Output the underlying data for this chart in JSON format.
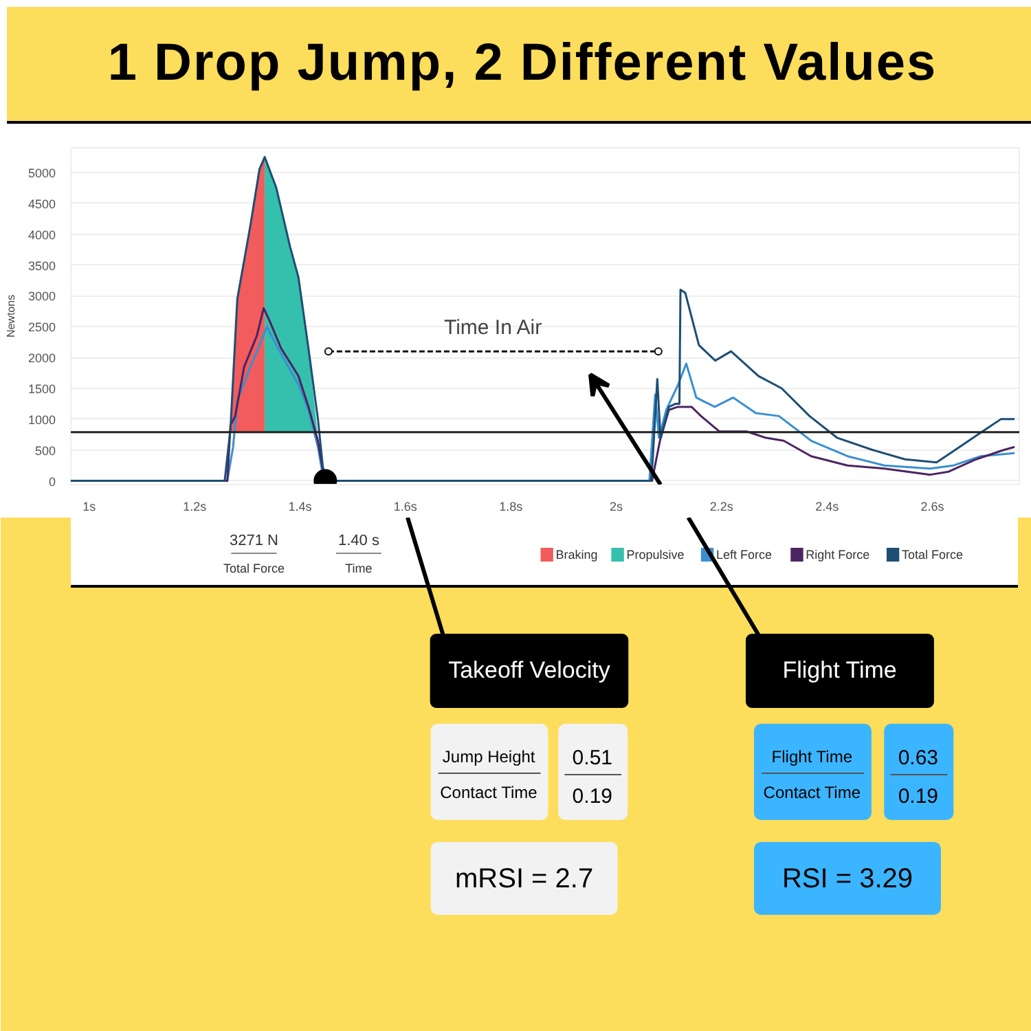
{
  "chart_data": [
    {
      "type": "line",
      "title": "1 Drop Jump, 2 Different Values",
      "ylabel": "Newtons",
      "xlim": [
        0.965,
        2.765
      ],
      "ylim": [
        -60,
        5400
      ],
      "xticks": [
        {
          "value": 1,
          "label": "1s"
        },
        {
          "value": 1.2,
          "label": "1.2s"
        },
        {
          "value": 1.4,
          "label": "1.4s"
        },
        {
          "value": 1.6,
          "label": "1.6s"
        },
        {
          "value": 1.8,
          "label": "1.8s"
        },
        {
          "value": 2,
          "label": "2s"
        },
        {
          "value": 2.2,
          "label": "2.2s"
        },
        {
          "value": 2.4,
          "label": "2.4s"
        },
        {
          "value": 2.6,
          "label": "2.6s"
        }
      ],
      "yticks": [
        0,
        500,
        1000,
        1500,
        2000,
        2500,
        3000,
        3500,
        4000,
        4500,
        5000
      ],
      "grid": "y",
      "legend": "bottom right",
      "ref_lines": [
        {
          "axis": "y",
          "value": 790,
          "color": "#222222"
        }
      ],
      "annotations": [
        {
          "text": "Time In Air",
          "x": 1.767,
          "y": 2100
        },
        "3271 N",
        "Total Force",
        "1.40 s",
        "Time"
      ],
      "series": [
        {
          "name": "Braking",
          "type": "area",
          "color": "#f25c5c",
          "x": [
            1.267,
            1.281,
            1.306,
            1.323,
            1.333
          ],
          "values": [
            800,
            2950,
            4150,
            5050,
            5250
          ]
        },
        {
          "name": "Propulsive",
          "type": "area",
          "color": "#35bfad",
          "x": [
            1.333,
            1.355,
            1.381,
            1.397,
            1.416,
            1.433
          ],
          "values": [
            5250,
            4750,
            3800,
            3300,
            2150,
            800
          ]
        },
        {
          "name": "Left Force",
          "color": "#3a8fd1",
          "x": [
            0.965,
            1.262,
            1.273,
            1.281,
            1.306,
            1.323,
            1.337,
            1.355,
            1.381,
            1.398,
            1.416,
            1.434,
            1.445,
            2.063,
            2.074,
            2.081,
            2.095,
            2.117,
            2.133,
            2.152,
            2.187,
            2.222,
            2.265,
            2.309,
            2.37,
            2.439,
            2.509,
            2.596,
            2.64,
            2.692,
            2.756
          ],
          "values": [
            0,
            0,
            550,
            1300,
            1850,
            2200,
            2500,
            2200,
            1800,
            1550,
            1150,
            550,
            0,
            0,
            1400,
            700,
            1150,
            1550,
            1900,
            1350,
            1200,
            1350,
            1100,
            1050,
            650,
            400,
            250,
            200,
            250,
            400,
            450
          ]
        },
        {
          "name": "Right Force",
          "color": "#4b2461",
          "x": [
            0.965,
            1.262,
            1.268,
            1.277,
            1.294,
            1.318,
            1.331,
            1.342,
            1.364,
            1.397,
            1.416,
            1.434,
            1.447,
            2.068,
            2.083,
            2.1,
            2.117,
            2.13,
            2.143,
            2.161,
            2.196,
            2.222,
            2.248,
            2.283,
            2.318,
            2.37,
            2.439,
            2.509,
            2.596,
            2.631,
            2.683,
            2.735,
            2.756
          ],
          "values": [
            0,
            0,
            900,
            1050,
            1850,
            2350,
            2800,
            2600,
            2150,
            1700,
            1200,
            650,
            0,
            0,
            650,
            1150,
            1200,
            1200,
            1200,
            1050,
            800,
            800,
            800,
            700,
            650,
            400,
            250,
            200,
            100,
            150,
            350,
            500,
            550
          ]
        },
        {
          "name": "Total Force",
          "color": "#1d4e74",
          "x": [
            0.965,
            1.257,
            1.268,
            1.281,
            1.306,
            1.323,
            1.333,
            1.355,
            1.381,
            1.397,
            1.416,
            1.434,
            1.443,
            1.448,
            2.066,
            2.069,
            2.078,
            2.084,
            2.1,
            2.113,
            2.12,
            2.122,
            2.131,
            2.157,
            2.188,
            2.218,
            2.27,
            2.314,
            2.367,
            2.419,
            2.487,
            2.548,
            2.608,
            2.643,
            2.695,
            2.73,
            2.756
          ],
          "values": [
            0,
            0,
            850,
            2950,
            4150,
            5050,
            5250,
            4750,
            3800,
            3300,
            2150,
            1000,
            250,
            0,
            0,
            300,
            1650,
            700,
            1200,
            1250,
            1250,
            3100,
            3050,
            2200,
            1950,
            2100,
            1700,
            1500,
            1050,
            700,
            500,
            350,
            300,
            500,
            800,
            1000,
            1000
          ]
        },
        {
          "color": "#111111",
          "line_style": "dashed",
          "marker": "circle",
          "x": [
            1.454,
            2.08
          ],
          "values": [
            2100,
            2100
          ]
        },
        {
          "type": "scatter",
          "color": "#000000",
          "marker": "circle",
          "x": [
            1.448
          ],
          "values": [
            0
          ]
        }
      ]
    },
    {
      "type": "other",
      "colors": [
        "#f2f2f2",
        "#3bb5ff"
      ],
      "annotations": [
        "Takeoff Velocity",
        "Jump Height",
        "Contact Time",
        "0.51",
        "0.19",
        "mRSI = 2.7",
        "Flight Time",
        "Flight Time",
        "Contact Time",
        "0.63",
        "0.19",
        "RSI = 3.29"
      ]
    }
  ]
}
